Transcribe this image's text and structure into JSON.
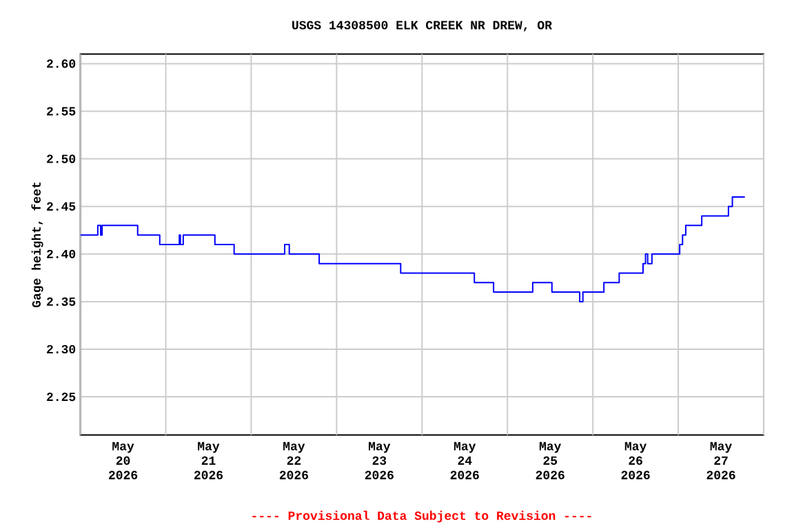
{
  "chart_data": {
    "type": "step",
    "title": "USGS 14308500 ELK CREEK NR DREW, OR",
    "ylabel": "Gage height, feet",
    "annotations": [
      "---- Provisional Data Subject to Revision ----"
    ],
    "x": [
      "2026-05-20T00:00",
      "2026-05-20T04:54",
      "2026-05-20T05:42",
      "2026-05-20T06:06",
      "2026-05-20T16:06",
      "2026-05-20T22:18",
      "2026-05-21T03:48",
      "2026-05-21T04:06",
      "2026-05-21T04:54",
      "2026-05-21T13:48",
      "2026-05-21T19:12",
      "2026-05-22T09:24",
      "2026-05-22T10:42",
      "2026-05-22T19:06",
      "2026-05-23T18:00",
      "2026-05-24T14:42",
      "2026-05-24T20:06",
      "2026-05-25T07:06",
      "2026-05-25T12:30",
      "2026-05-25T20:18",
      "2026-05-25T21:12",
      "2026-05-26T03:06",
      "2026-05-26T07:24",
      "2026-05-26T14:06",
      "2026-05-26T14:48",
      "2026-05-26T15:24",
      "2026-05-26T16:36",
      "2026-05-27T00:24",
      "2026-05-27T01:12",
      "2026-05-27T02:06",
      "2026-05-27T06:36",
      "2026-05-27T14:06",
      "2026-05-27T15:12",
      "2026-05-27T18:42"
    ],
    "values": [
      2.42,
      2.43,
      2.42,
      2.43,
      2.42,
      2.41,
      2.42,
      2.41,
      2.42,
      2.41,
      2.4,
      2.41,
      2.4,
      2.39,
      2.38,
      2.37,
      2.36,
      2.37,
      2.36,
      2.35,
      2.36,
      2.37,
      2.38,
      2.39,
      2.4,
      2.39,
      2.4,
      2.41,
      2.42,
      2.43,
      2.44,
      2.45,
      2.46,
      2.46
    ],
    "color": "#0000ff",
    "xlim": [
      "2026-05-20T00:00",
      "2026-05-28T00:00"
    ],
    "xticks": [
      {
        "value": "2026-05-20T00:00",
        "label": null
      },
      {
        "value": "2026-05-20T12:00",
        "label": "May 20 2026"
      },
      {
        "value": "2026-05-21T00:00",
        "label": null
      },
      {
        "value": "2026-05-21T12:00",
        "label": "May 21 2026"
      },
      {
        "value": "2026-05-22T00:00",
        "label": null
      },
      {
        "value": "2026-05-22T12:00",
        "label": "May 22 2026"
      },
      {
        "value": "2026-05-23T00:00",
        "label": null
      },
      {
        "value": "2026-05-23T12:00",
        "label": "May 23 2026"
      },
      {
        "value": "2026-05-24T00:00",
        "label": null
      },
      {
        "value": "2026-05-24T12:00",
        "label": "May 24 2026"
      },
      {
        "value": "2026-05-25T00:00",
        "label": null
      },
      {
        "value": "2026-05-25T12:00",
        "label": "May 25 2026"
      },
      {
        "value": "2026-05-26T00:00",
        "label": null
      },
      {
        "value": "2026-05-26T12:00",
        "label": "May 26 2026"
      },
      {
        "value": "2026-05-27T00:00",
        "label": null
      },
      {
        "value": "2026-05-27T12:00",
        "label": "May 27 2026"
      },
      {
        "value": "2026-05-28T00:00",
        "label": null
      }
    ],
    "ylim": [
      2.21,
      2.61
    ],
    "yticks": [
      2.25,
      {
        "value": 2.3,
        "label": "2.30"
      },
      2.35,
      {
        "value": 2.4,
        "label": "2.40"
      },
      2.45,
      {
        "value": 2.5,
        "label": "2.50"
      },
      2.55,
      {
        "value": 2.6,
        "label": "2.60"
      }
    ],
    "grid": true
  }
}
